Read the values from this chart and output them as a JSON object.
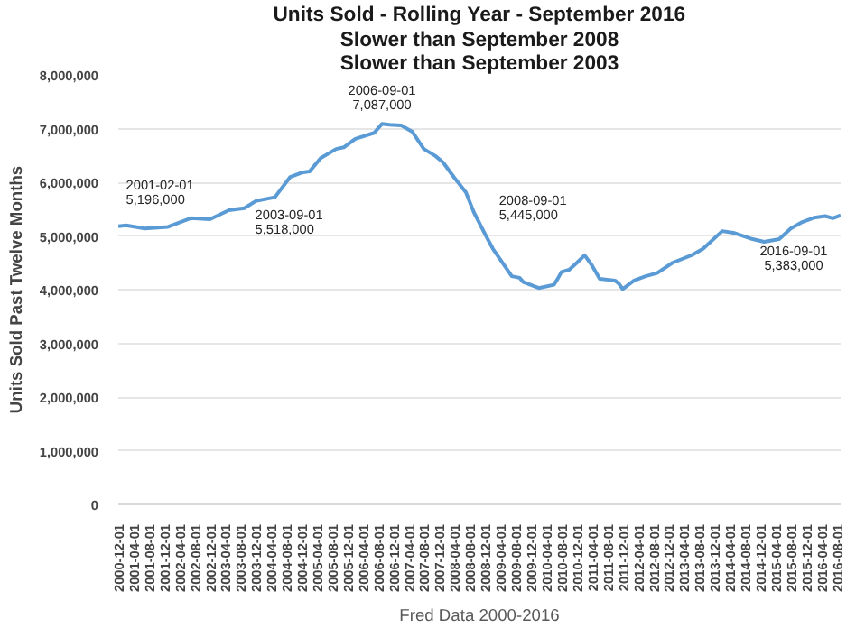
{
  "chart_data": {
    "type": "line",
    "title": "Units Sold - Rolling Year - September 2016",
    "subtitle": "Slower than September 2008\nSlower than September 2003",
    "xlabel": "Fred Data 2000-2016",
    "ylabel": "Units Sold Past Twelve Months",
    "x": [
      "2000-12",
      "2001-02",
      "2001-07",
      "2002-01",
      "2002-07",
      "2002-12",
      "2003-05",
      "2003-09",
      "2003-12",
      "2004-05",
      "2004-09",
      "2004-12",
      "2005-02",
      "2005-05",
      "2005-09",
      "2005-11",
      "2006-02",
      "2006-07",
      "2006-09",
      "2006-11",
      "2007-02",
      "2007-05",
      "2007-08",
      "2007-11",
      "2008-01",
      "2008-04",
      "2008-07",
      "2008-09",
      "2008-12",
      "2009-02",
      "2009-07",
      "2009-09",
      "2009-10",
      "2010-02",
      "2010-06",
      "2010-07",
      "2010-08",
      "2010-10",
      "2010-12",
      "2011-02",
      "2011-04",
      "2011-06",
      "2011-10",
      "2011-11",
      "2011-12",
      "2012-03",
      "2012-06",
      "2012-09",
      "2013-01",
      "2013-06",
      "2013-09",
      "2014-02",
      "2014-05",
      "2014-10",
      "2015-01",
      "2015-05",
      "2015-08",
      "2015-11",
      "2016-02",
      "2016-05",
      "2016-07",
      "2016-09"
    ],
    "series": [
      {
        "color": "#5b9bd5",
        "values": [
          5180000,
          5196000,
          5140000,
          5170000,
          5330000,
          5310000,
          5480000,
          5518000,
          5650000,
          5720000,
          6100000,
          6180000,
          6200000,
          6450000,
          6620000,
          6650000,
          6810000,
          6920000,
          7087000,
          7070000,
          7060000,
          6940000,
          6620000,
          6490000,
          6370000,
          6080000,
          5810000,
          5445000,
          5030000,
          4760000,
          4250000,
          4220000,
          4140000,
          4030000,
          4090000,
          4200000,
          4330000,
          4370000,
          4500000,
          4640000,
          4450000,
          4200000,
          4170000,
          4110000,
          4010000,
          4170000,
          4250000,
          4310000,
          4500000,
          4640000,
          4760000,
          5090000,
          5060000,
          4940000,
          4890000,
          4940000,
          5140000,
          5260000,
          5340000,
          5370000,
          5330000,
          5383000
        ]
      }
    ],
    "xlim": [
      "2000-12-01",
      "2016-09-01"
    ],
    "xticks": [
      "2000-12-01",
      "2001-04-01",
      "2001-08-01",
      "2001-12-01",
      "2002-04-01",
      "2002-08-01",
      "2002-12-01",
      "2003-04-01",
      "2003-08-01",
      "2003-12-01",
      "2004-04-01",
      "2004-08-01",
      "2004-12-01",
      "2005-04-01",
      "2005-08-01",
      "2005-12-01",
      "2006-04-01",
      "2006-08-01",
      "2006-12-01",
      "2007-04-01",
      "2007-08-01",
      "2007-12-01",
      "2008-04-01",
      "2008-08-01",
      "2008-12-01",
      "2009-04-01",
      "2009-08-01",
      "2009-12-01",
      "2010-04-01",
      "2010-08-01",
      "2010-12-01",
      "2011-04-01",
      "2011-08-01",
      "2011-12-01",
      "2012-04-01",
      "2012-08-01",
      "2012-12-01",
      "2013-04-01",
      "2013-08-01",
      "2013-12-01",
      "2014-04-01",
      "2014-08-01",
      "2014-12-01",
      "2015-04-01",
      "2015-08-01",
      "2015-12-01",
      "2016-04-01",
      "2016-08-01"
    ],
    "ylim": [
      0,
      8000000
    ],
    "yticks": [
      0,
      {
        "value": 1000000,
        "label": "1,000,000"
      },
      {
        "value": 2000000,
        "label": "2,000,000"
      },
      {
        "value": 3000000,
        "label": "3,000,000"
      },
      {
        "value": 4000000,
        "label": "4,000,000"
      },
      {
        "value": 5000000,
        "label": "5,000,000"
      },
      {
        "value": 6000000,
        "label": "6,000,000"
      },
      {
        "value": 7000000,
        "label": "7,000,000"
      },
      {
        "value": 8000000,
        "label": "8,000,000"
      }
    ],
    "annotations": [
      {
        "text": "2001-02-01\n5,196,000",
        "x": "2001-02",
        "y": 5196000
      },
      {
        "text": "2003-09-01\n5,518,000",
        "x": "2003-09",
        "y": 5518000
      },
      {
        "text": "2006-09-01\n7,087,000",
        "x": "2006-09",
        "y": 7087000
      },
      {
        "text": "2008-09-01\n5,445,000",
        "x": "2008-09",
        "y": 5445000
      },
      {
        "text": "2016-09-01\n5,383,000",
        "x": "2016-09",
        "y": 5383000
      }
    ],
    "grid": "y",
    "line_style": "solid"
  }
}
